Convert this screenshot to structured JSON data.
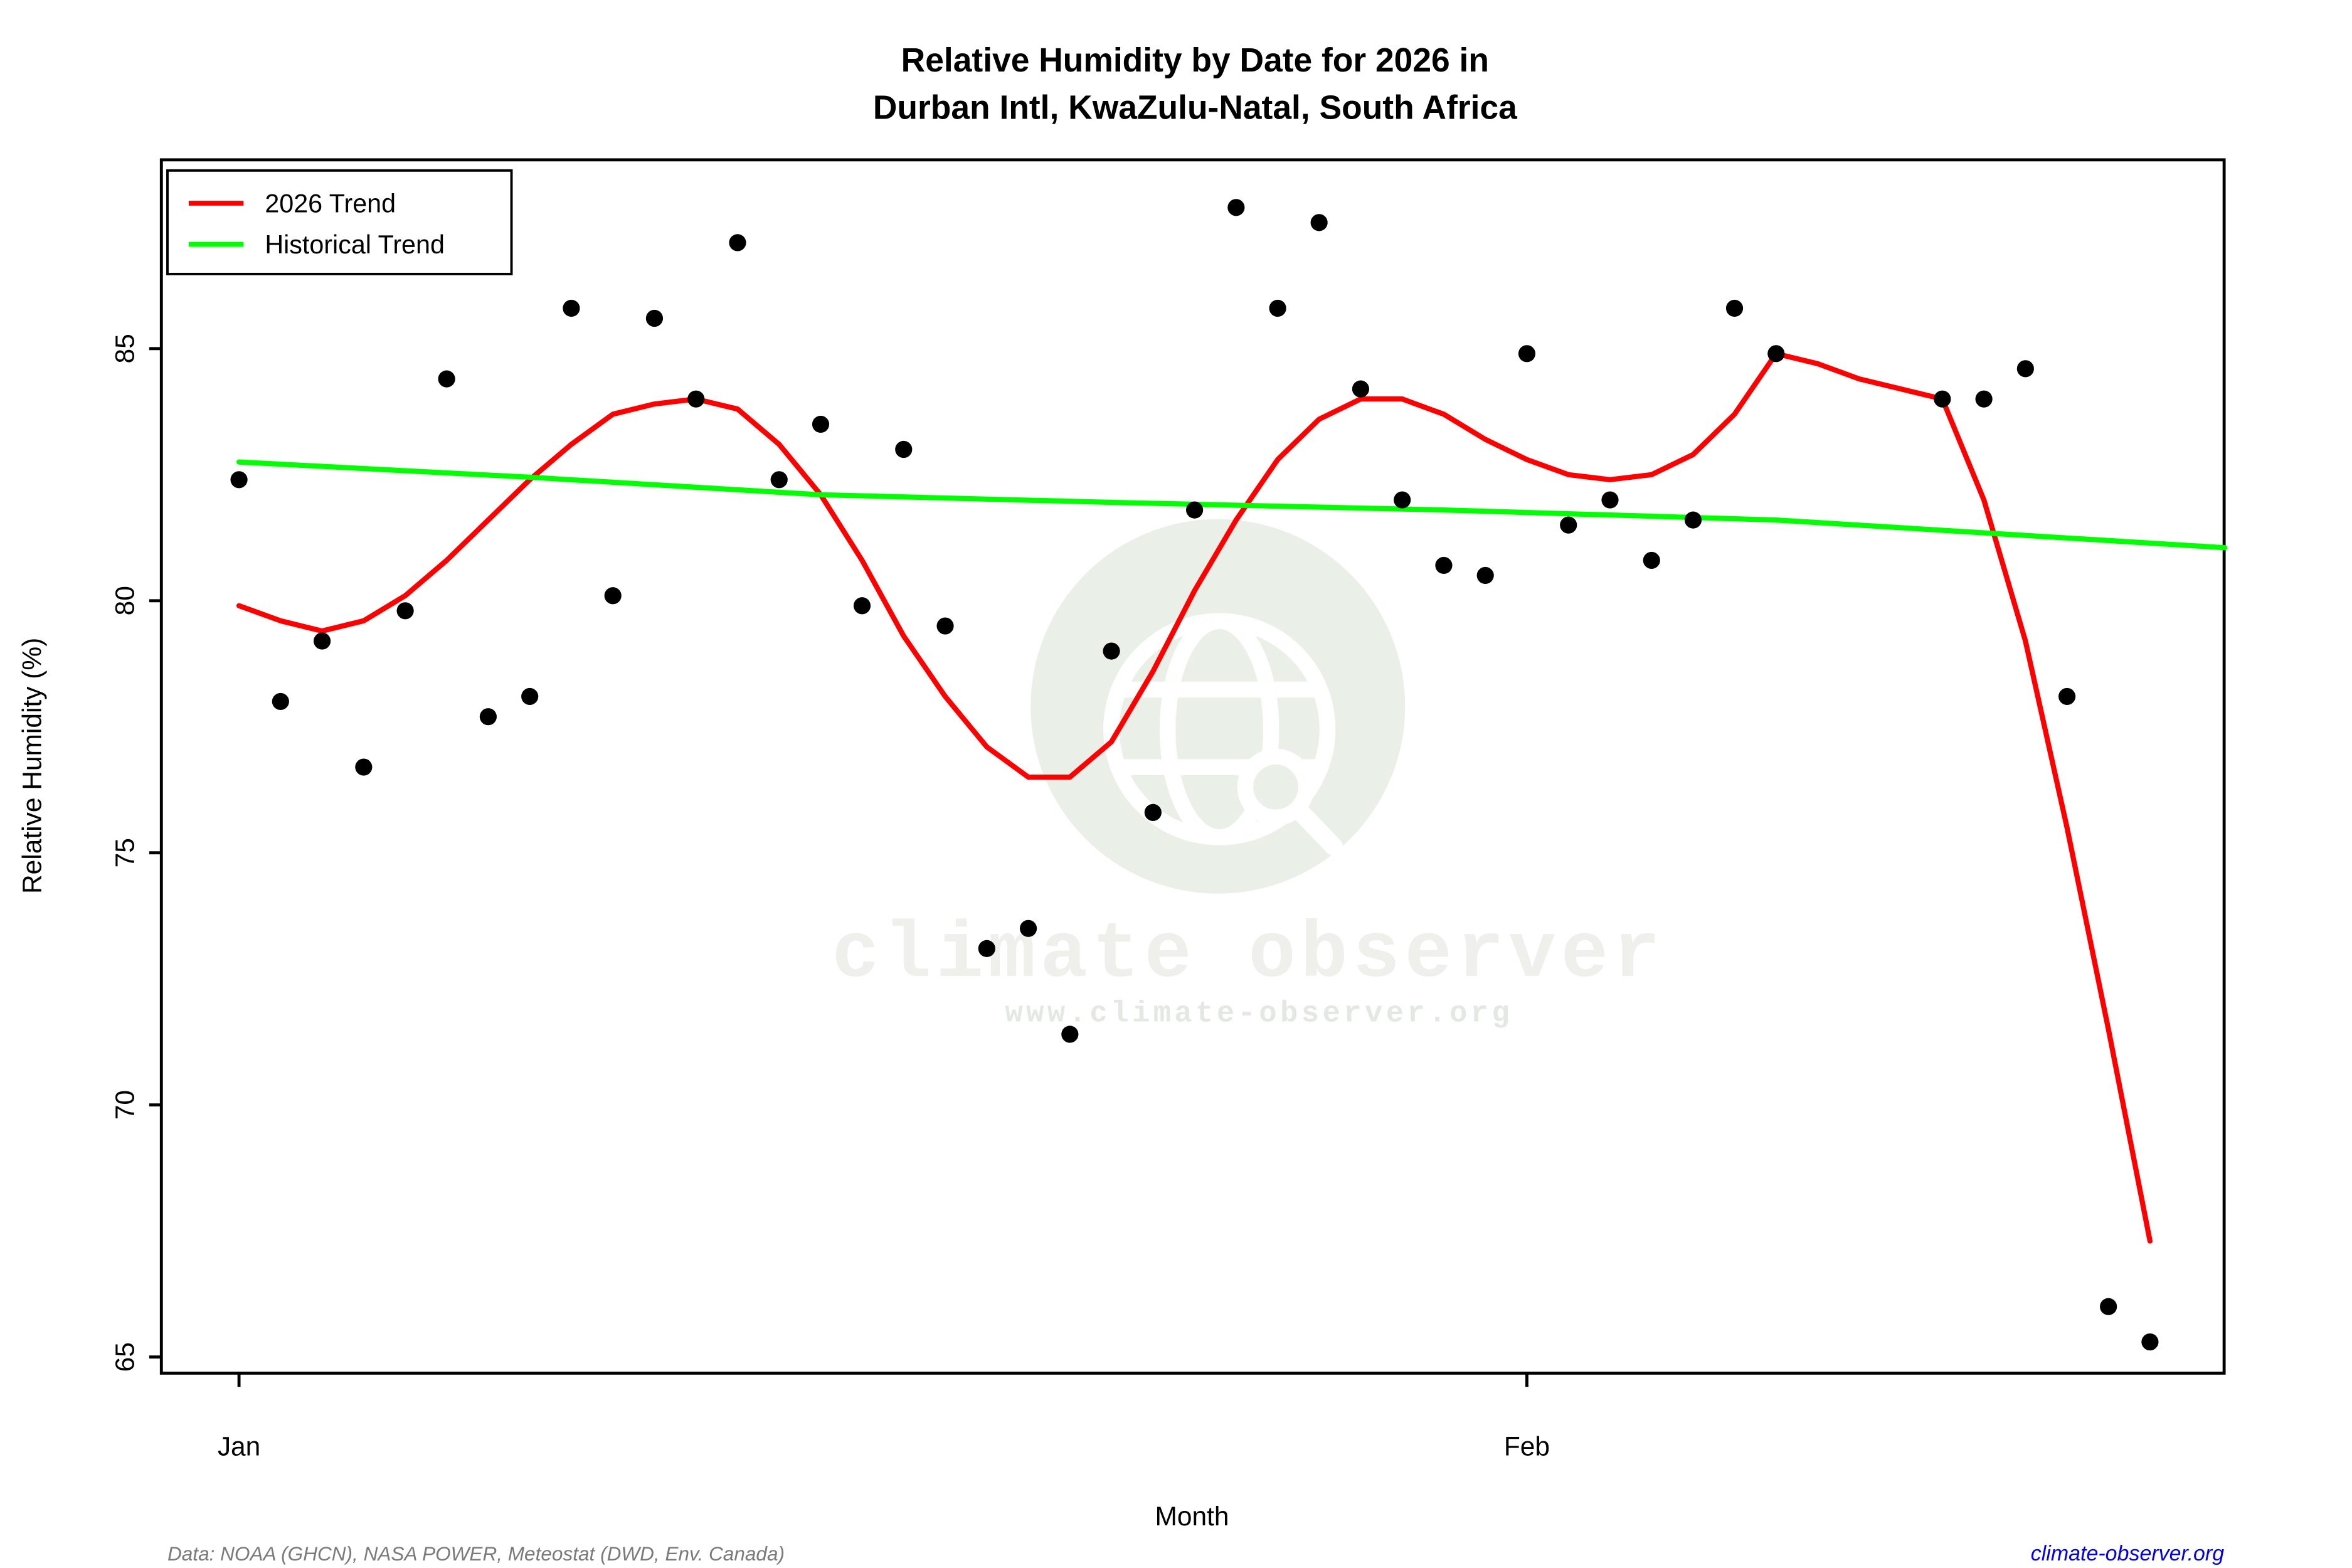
{
  "chart": {
    "title1": "Relative Humidity by Date for 2026 in",
    "title2": "Durban Intl, KwaZulu-Natal, South Africa",
    "xlabel": "Month",
    "ylabel": "Relative Humidity (%)",
    "legend": [
      {
        "label": "2026 Trend",
        "color": "#ff0000"
      },
      {
        "label": "Historical Trend",
        "color": "#00ff00"
      }
    ],
    "watermark": {
      "title": "climate observer",
      "url": "www.climate-observer.org",
      "circle_color": "#eaf0e8",
      "icon": "globe-with-magnifier"
    },
    "footer": {
      "source": "Data: NOAA (GHCN), NASA POWER, Meteostat (DWD, Env. Canada)",
      "link": "climate-observer.org"
    }
  },
  "chart_data": {
    "type": "scatter",
    "title": "Relative Humidity by Date for 2026 in Durban Intl, KwaZulu-Natal, South Africa",
    "xlabel": "Month",
    "ylabel": "Relative Humidity (%)",
    "x_unit": "day (1 = Jan 1, 32 = Feb 1)",
    "xlim": [
      -0.9,
      48.8
    ],
    "ylim": [
      64.7,
      88.8
    ],
    "grid": false,
    "legend_position": "top-left",
    "x_ticks": [
      {
        "label": "Jan",
        "day": 1
      },
      {
        "label": "Feb",
        "day": 32
      }
    ],
    "y_ticks": [
      65,
      70,
      75,
      80,
      85
    ],
    "point_color": "#000000",
    "points": [
      [
        1,
        82.4
      ],
      [
        2,
        78.0
      ],
      [
        3,
        79.2
      ],
      [
        4,
        76.7
      ],
      [
        5,
        79.8
      ],
      [
        6,
        84.4
      ],
      [
        7,
        77.7
      ],
      [
        8,
        78.1
      ],
      [
        9,
        85.8
      ],
      [
        10,
        80.1
      ],
      [
        11,
        85.6
      ],
      [
        12,
        84.0
      ],
      [
        13,
        87.1
      ],
      [
        14,
        82.4
      ],
      [
        15,
        83.5
      ],
      [
        16,
        79.9
      ],
      [
        17,
        83.0
      ],
      [
        18,
        79.5
      ],
      [
        19,
        73.1
      ],
      [
        20,
        73.5
      ],
      [
        21,
        71.4
      ],
      [
        22,
        79.0
      ],
      [
        23,
        75.8
      ],
      [
        24,
        81.8
      ],
      [
        25,
        87.8
      ],
      [
        26,
        85.8
      ],
      [
        27,
        87.5
      ],
      [
        28,
        84.2
      ],
      [
        29,
        82.0
      ],
      [
        30,
        80.7
      ],
      [
        31,
        80.5
      ],
      [
        32,
        84.9
      ],
      [
        33,
        81.5
      ],
      [
        34,
        82.0
      ],
      [
        35,
        80.8
      ],
      [
        36,
        81.6
      ],
      [
        37,
        85.8
      ],
      [
        38,
        84.9
      ],
      [
        42,
        84.0
      ],
      [
        43,
        84.0
      ],
      [
        44,
        84.6
      ],
      [
        45,
        78.1
      ],
      [
        46,
        66.0
      ],
      [
        47,
        65.3
      ]
    ],
    "series": [
      {
        "name": "2026 Trend",
        "color": "#ff0000",
        "points": [
          [
            1,
            79.9
          ],
          [
            2,
            79.6
          ],
          [
            3,
            79.4
          ],
          [
            4,
            79.6
          ],
          [
            5,
            80.1
          ],
          [
            6,
            80.8
          ],
          [
            7,
            81.6
          ],
          [
            8,
            82.4
          ],
          [
            9,
            83.1
          ],
          [
            10,
            83.7
          ],
          [
            11,
            83.9
          ],
          [
            12,
            84.0
          ],
          [
            13,
            83.8
          ],
          [
            14,
            83.1
          ],
          [
            15,
            82.1
          ],
          [
            16,
            80.8
          ],
          [
            17,
            79.3
          ],
          [
            18,
            78.1
          ],
          [
            19,
            77.1
          ],
          [
            20,
            76.5
          ],
          [
            21,
            76.5
          ],
          [
            22,
            77.2
          ],
          [
            23,
            78.6
          ],
          [
            24,
            80.2
          ],
          [
            25,
            81.6
          ],
          [
            26,
            82.8
          ],
          [
            27,
            83.6
          ],
          [
            28,
            84.0
          ],
          [
            29,
            84.0
          ],
          [
            30,
            83.7
          ],
          [
            31,
            83.2
          ],
          [
            32,
            82.8
          ],
          [
            33,
            82.5
          ],
          [
            34,
            82.4
          ],
          [
            35,
            82.5
          ],
          [
            36,
            82.9
          ],
          [
            37,
            83.7
          ],
          [
            38,
            84.9
          ],
          [
            39,
            84.7
          ],
          [
            40,
            84.4
          ],
          [
            41,
            84.2
          ],
          [
            42,
            84.0
          ],
          [
            43,
            82.0
          ],
          [
            44,
            79.2
          ],
          [
            45,
            75.5
          ],
          [
            46,
            71.5
          ],
          [
            47,
            67.3
          ]
        ]
      },
      {
        "name": "Historical Trend",
        "color": "#00ff00",
        "points": [
          [
            1,
            82.75
          ],
          [
            8,
            82.45
          ],
          [
            15,
            82.1
          ],
          [
            22,
            81.95
          ],
          [
            30,
            81.8
          ],
          [
            38,
            81.6
          ],
          [
            48.8,
            81.05
          ]
        ]
      }
    ]
  }
}
